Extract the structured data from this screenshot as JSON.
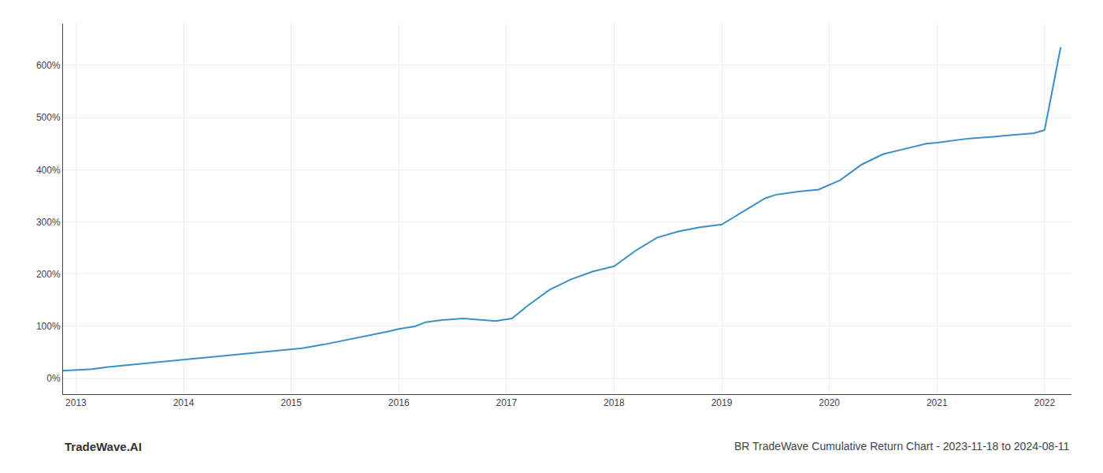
{
  "chart_data": {
    "type": "line",
    "title": "BR TradeWave Cumulative Return Chart - 2023-11-18 to 2024-08-11",
    "annotations": [
      "TradeWave.AI"
    ],
    "color": "#3a8fc7",
    "grid": true,
    "xlim": [
      2012.88,
      2022.25
    ],
    "ylim": [
      -30,
      680
    ],
    "xticks": [
      2013,
      2014,
      2015,
      2016,
      2017,
      2018,
      2019,
      2020,
      2021,
      2022
    ],
    "yticks": [
      {
        "value": 0,
        "label": "0%"
      },
      {
        "value": 100,
        "label": "100%"
      },
      {
        "value": 200,
        "label": "200%"
      },
      {
        "value": 300,
        "label": "300%"
      },
      {
        "value": 400,
        "label": "400%"
      },
      {
        "value": 500,
        "label": "500%"
      },
      {
        "value": 600,
        "label": "600%"
      }
    ],
    "x": [
      2012.88,
      2013.0,
      2013.15,
      2013.3,
      2013.5,
      2013.7,
      2013.9,
      2014.1,
      2014.3,
      2014.5,
      2014.7,
      2014.9,
      2015.1,
      2015.3,
      2015.5,
      2015.7,
      2015.9,
      2016.0,
      2016.15,
      2016.25,
      2016.4,
      2016.6,
      2016.75,
      2016.9,
      2017.05,
      2017.2,
      2017.4,
      2017.6,
      2017.8,
      2018.0,
      2018.2,
      2018.4,
      2018.6,
      2018.8,
      2019.0,
      2019.2,
      2019.4,
      2019.5,
      2019.7,
      2019.9,
      2020.1,
      2020.3,
      2020.5,
      2020.7,
      2020.9,
      2021.0,
      2021.15,
      2021.3,
      2021.5,
      2021.7,
      2021.9,
      2022.0,
      2022.15
    ],
    "values": [
      15,
      16,
      18,
      22,
      26,
      30,
      35,
      38,
      42,
      46,
      50,
      54,
      58,
      65,
      73,
      82,
      90,
      95,
      100,
      108,
      112,
      115,
      112,
      110,
      115,
      140,
      170,
      190,
      205,
      215,
      245,
      270,
      282,
      290,
      295,
      320,
      345,
      352,
      358,
      362,
      380,
      410,
      430,
      440,
      450,
      452,
      456,
      460,
      463,
      466,
      470,
      476,
      635
    ]
  }
}
